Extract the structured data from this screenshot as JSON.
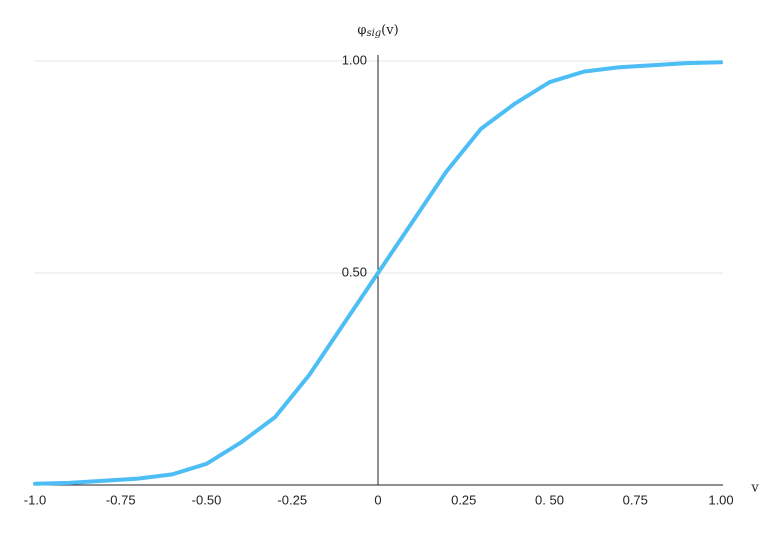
{
  "chart_data": {
    "type": "line",
    "ylabel": {
      "base": "φ",
      "sub": "sig",
      "rest": "(v)"
    },
    "xlabel": "v",
    "x": [
      -1,
      -0.9,
      -0.8,
      -0.7,
      -0.6,
      -0.5,
      -0.4,
      -0.3,
      -0.2,
      -0.1,
      0,
      0.1,
      0.2,
      0.3,
      0.4,
      0.5,
      0.6,
      0.7,
      0.8,
      0.9,
      1
    ],
    "series": [
      {
        "color": "#4dbdf5",
        "values": [
          0.003,
          0.005,
          0.01,
          0.015,
          0.025,
          0.05,
          0.1,
          0.16,
          0.26,
          0.38,
          0.5,
          0.62,
          0.74,
          0.84,
          0.9,
          0.95,
          0.975,
          0.985,
          0.99,
          0.995,
          0.997
        ]
      }
    ],
    "xlim": [
      -1,
      1
    ],
    "ylim": [
      0,
      1
    ],
    "xticks": [
      {
        "value": -1,
        "label": "-1.0"
      },
      -0.75,
      {
        "value": -0.5,
        "label": "-0.50"
      },
      -0.25,
      0,
      0.25,
      {
        "value": 0.5,
        "label": "0. 50"
      },
      0.75,
      {
        "value": 1,
        "label": "1.00"
      }
    ],
    "yticks": [
      {
        "value": 0.5,
        "label": "0.50"
      },
      {
        "value": 1,
        "label": "1.00"
      }
    ],
    "grid": true
  }
}
